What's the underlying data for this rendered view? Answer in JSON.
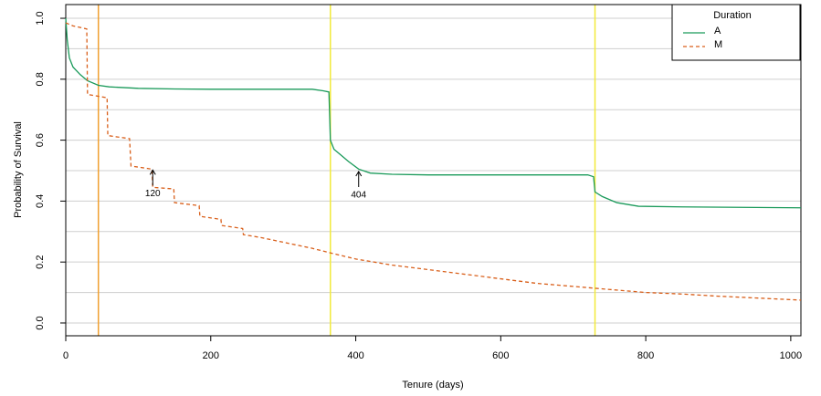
{
  "chart_data": {
    "type": "line",
    "xlabel": "Tenure (days)",
    "ylabel": "Probability of Survival",
    "xlim": [
      0,
      1014
    ],
    "ylim": [
      -0.042,
      1.045
    ],
    "xticks": [
      0,
      200,
      400,
      600,
      800,
      1000
    ],
    "yticks": [
      {
        "value": 0,
        "label": "0.0"
      },
      {
        "value": 0.2,
        "label": "0.2"
      },
      {
        "value": 0.4,
        "label": "0.4"
      },
      {
        "value": 0.6,
        "label": "0.6"
      },
      {
        "value": 0.8,
        "label": "0.8"
      },
      {
        "value": 1,
        "label": "1.0"
      }
    ],
    "grid_y": [
      0,
      0.1,
      0.2,
      0.3,
      0.4,
      0.5,
      0.6,
      0.7,
      0.8,
      0.9,
      1.0
    ],
    "vlines": [
      {
        "x": 45,
        "color": "#f0a030"
      },
      {
        "x": 365,
        "color": "#f2ea3a"
      },
      {
        "x": 730,
        "color": "#f2ea3a"
      }
    ],
    "legend": {
      "title": "Duration",
      "position": "top-right"
    },
    "annotations": [
      {
        "x": 120,
        "y": 0.505,
        "text": "120"
      },
      {
        "x": 404,
        "y": 0.5,
        "text": "404"
      }
    ],
    "series": [
      {
        "name": "A",
        "color": "#1a9a5a",
        "dash": false,
        "x": [
          0,
          2,
          5,
          10,
          20,
          30,
          45,
          60,
          100,
          150,
          200,
          340,
          355,
          363,
          365,
          370,
          380,
          390,
          404,
          420,
          450,
          500,
          720,
          728,
          730,
          740,
          760,
          790,
          850,
          1014
        ],
        "values": [
          1.0,
          0.93,
          0.87,
          0.84,
          0.815,
          0.795,
          0.78,
          0.775,
          0.77,
          0.768,
          0.767,
          0.767,
          0.762,
          0.758,
          0.6,
          0.57,
          0.55,
          0.53,
          0.505,
          0.492,
          0.488,
          0.486,
          0.486,
          0.48,
          0.43,
          0.415,
          0.395,
          0.383,
          0.381,
          0.378
        ]
      },
      {
        "name": "M",
        "color": "#d95f1a",
        "dash": true,
        "x": [
          0,
          10,
          29,
          30,
          55,
          57,
          58,
          88,
          90,
          119,
          120,
          149,
          150,
          184,
          185,
          214,
          215,
          244,
          245,
          270,
          300,
          340,
          365,
          400,
          450,
          500,
          550,
          600,
          650,
          700,
          750,
          800,
          850,
          900,
          1014
        ],
        "values": [
          0.985,
          0.975,
          0.965,
          0.75,
          0.74,
          0.74,
          0.615,
          0.605,
          0.515,
          0.505,
          0.445,
          0.44,
          0.395,
          0.385,
          0.35,
          0.34,
          0.32,
          0.31,
          0.29,
          0.28,
          0.265,
          0.245,
          0.23,
          0.21,
          0.19,
          0.175,
          0.16,
          0.145,
          0.13,
          0.12,
          0.11,
          0.1,
          0.095,
          0.088,
          0.075
        ]
      }
    ]
  }
}
